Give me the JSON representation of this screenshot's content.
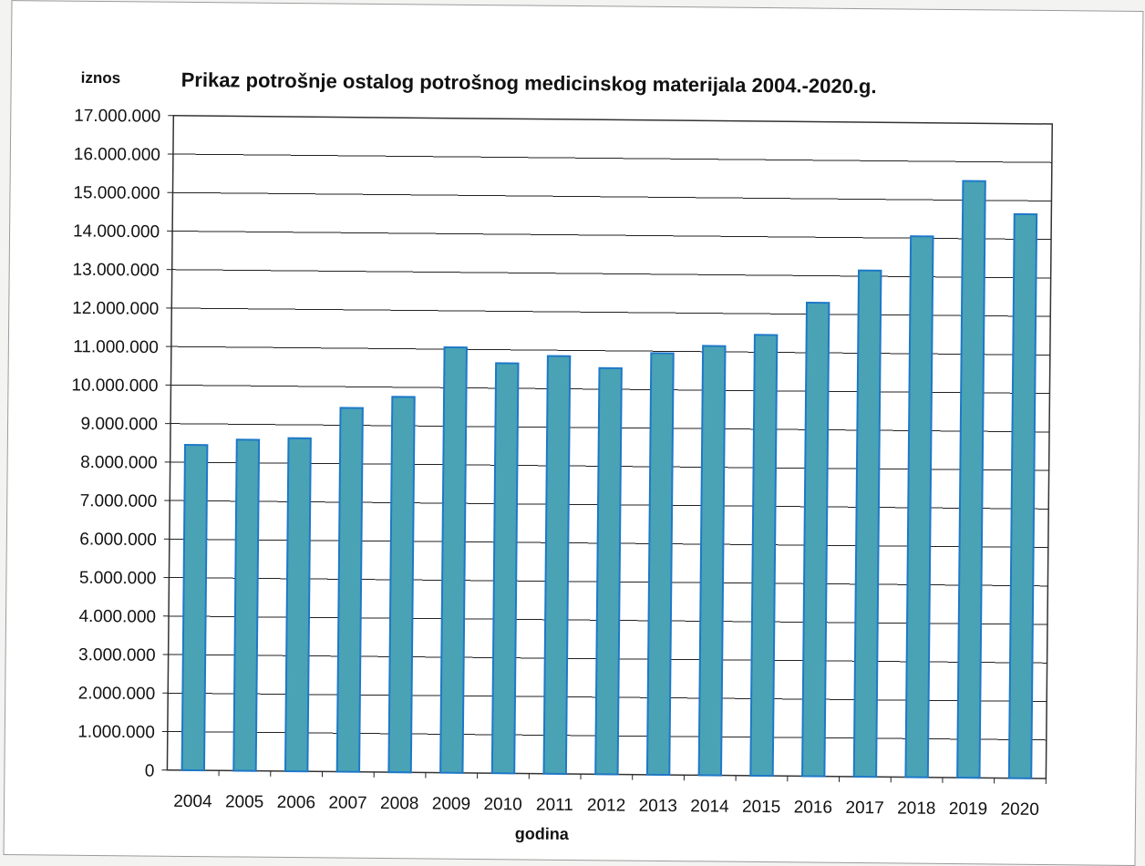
{
  "chart_data": {
    "type": "bar",
    "title": "Prikaz potrošnje ostalog potrošnog  medicinskog materijala 2004.-2020.g.",
    "xlabel": "godina",
    "ylabel": "iznos",
    "categories": [
      "2004",
      "2005",
      "2006",
      "2007",
      "2008",
      "2009",
      "2010",
      "2011",
      "2012",
      "2013",
      "2014",
      "2015",
      "2016",
      "2017",
      "2018",
      "2019",
      "2020"
    ],
    "values": [
      8450000,
      8600000,
      8650000,
      9450000,
      9750000,
      11050000,
      10650000,
      10850000,
      10550000,
      10950000,
      11150000,
      11450000,
      12300000,
      13150000,
      14050000,
      15500000,
      14650000
    ],
    "ylim": [
      0,
      17000000
    ],
    "yticks": [
      "0",
      "1.000.000",
      "2.000.000",
      "3.000.000",
      "4.000.000",
      "5.000.000",
      "6.000.000",
      "7.000.000",
      "8.000.000",
      "9.000.000",
      "10.000.000",
      "11.000.000",
      "12.000.000",
      "13.000.000",
      "14.000.000",
      "15.000.000",
      "16.000.000",
      "17.000.000"
    ],
    "grid": true,
    "legend": "none",
    "bar_fill_color": "#4aa3b5",
    "bar_edge_color": "#1e78c8"
  }
}
